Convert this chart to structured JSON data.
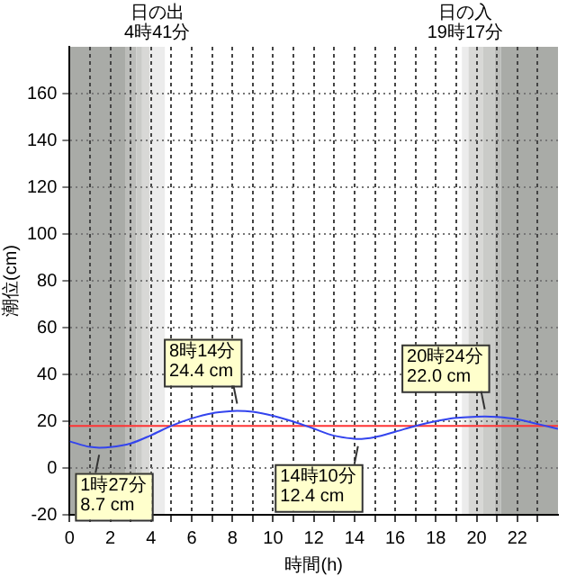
{
  "chart_data": {
    "type": "line",
    "xlabel": "時間(h)",
    "ylabel": "潮位(cm)",
    "xlim": [
      0,
      24
    ],
    "ylim": [
      -20,
      180
    ],
    "xticks": [
      0,
      {
        "value": 1,
        "label": null
      },
      2,
      {
        "value": 3,
        "label": null
      },
      4,
      {
        "value": 5,
        "label": null
      },
      6,
      {
        "value": 7,
        "label": null
      },
      8,
      {
        "value": 9,
        "label": null
      },
      10,
      {
        "value": 11,
        "label": null
      },
      12,
      {
        "value": 13,
        "label": null
      },
      14,
      {
        "value": 15,
        "label": null
      },
      16,
      {
        "value": 17,
        "label": null
      },
      18,
      {
        "value": 19,
        "label": null
      },
      20,
      {
        "value": 21,
        "label": null
      },
      22,
      {
        "value": 23,
        "label": null
      }
    ],
    "yticks": [
      -20,
      0,
      20,
      40,
      60,
      80,
      100,
      120,
      140,
      160
    ],
    "grid": true,
    "legend": false,
    "marker": "none",
    "line_style": "solid",
    "series": [
      {
        "color": "#3344ee",
        "x": [
          0,
          1,
          1.45,
          2,
          3,
          4,
          5,
          6,
          7,
          8,
          8.23,
          9,
          10,
          11,
          12,
          13,
          14,
          14.17,
          15,
          16,
          17,
          18,
          19,
          20,
          20.4,
          21,
          22,
          23,
          24
        ],
        "values": [
          11.4,
          9.0,
          8.7,
          8.9,
          10.5,
          14,
          18,
          21.2,
          23.4,
          24.3,
          24.4,
          24,
          22.3,
          19.8,
          16.8,
          13.8,
          12.5,
          12.4,
          13.2,
          15.5,
          18,
          20,
          21.4,
          21.9,
          22.0,
          21.8,
          20.8,
          18.8,
          16.7
        ]
      }
    ],
    "ref_lines": [
      {
        "axis": "y",
        "value": 18,
        "color": "#ff3333"
      }
    ],
    "bands": [
      {
        "axis": "x",
        "from": 0,
        "to": 2.76,
        "color": "#a9aba7"
      },
      {
        "axis": "x",
        "from": 2.76,
        "to": 3.27,
        "color": "#bcbdba"
      },
      {
        "axis": "x",
        "from": 3.27,
        "to": 3.56,
        "color": "#cacbc8"
      },
      {
        "axis": "x",
        "from": 3.56,
        "to": 3.93,
        "color": "#d8d8d6"
      },
      {
        "axis": "x",
        "from": 3.93,
        "to": 4.68,
        "color": "#ececec",
        "label": "日の出\n4時41分"
      },
      {
        "axis": "x",
        "from": 19.28,
        "to": 19.6,
        "color": "#ececec",
        "label": "日の入\n19時17分"
      },
      {
        "axis": "x",
        "from": 19.6,
        "to": 20.3,
        "color": "#d8d8d6"
      },
      {
        "axis": "x",
        "from": 20.3,
        "to": 20.9,
        "color": "#cacbc8"
      },
      {
        "axis": "x",
        "from": 20.9,
        "to": 21.2,
        "color": "#bcbdba"
      },
      {
        "axis": "x",
        "from": 21.2,
        "to": 24,
        "color": "#a9aba7"
      }
    ],
    "annotations": [
      {
        "text": "1時27分\n8.7 cm",
        "x": 1.45,
        "y": 8.7
      },
      {
        "text": "8時14分\n24.4 cm",
        "x": 8.23,
        "y": 24.4
      },
      {
        "text": "14時10分\n12.4 cm",
        "x": 14.17,
        "y": 12.4
      },
      {
        "text": "20時24分\n22.0 cm",
        "x": 20.4,
        "y": 22.0
      }
    ]
  }
}
